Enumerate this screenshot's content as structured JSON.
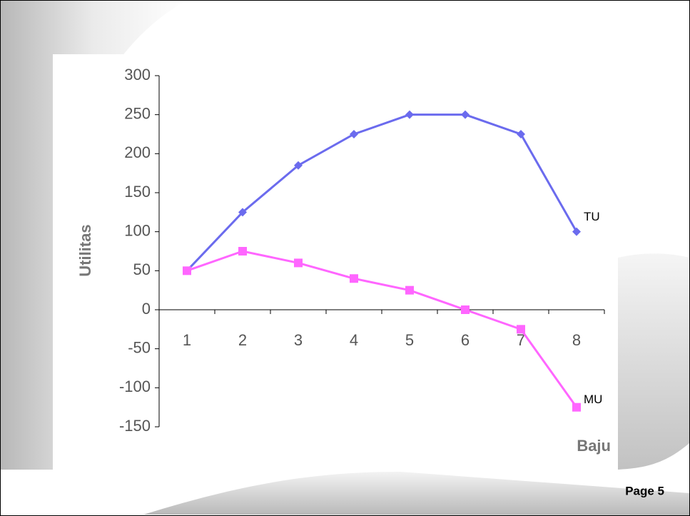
{
  "chart_data": {
    "type": "line",
    "x_label": "Baju",
    "y_label": "Utilitas",
    "categories": [
      "1",
      "2",
      "3",
      "4",
      "5",
      "6",
      "7",
      "8"
    ],
    "series": [
      {
        "name": "TU",
        "color": "#6b6bee",
        "marker": "diamond",
        "values": [
          50,
          125,
          185,
          225,
          250,
          250,
          225,
          100
        ]
      },
      {
        "name": "MU",
        "color": "#ff66ff",
        "marker": "square",
        "values": [
          50,
          75,
          60,
          40,
          25,
          0,
          -25,
          -125
        ]
      }
    ],
    "ylim": [
      -150,
      300
    ],
    "yticks": [
      -150,
      -100,
      -50,
      0,
      50,
      100,
      150,
      200,
      250,
      300
    ]
  },
  "footer": "Page 5"
}
